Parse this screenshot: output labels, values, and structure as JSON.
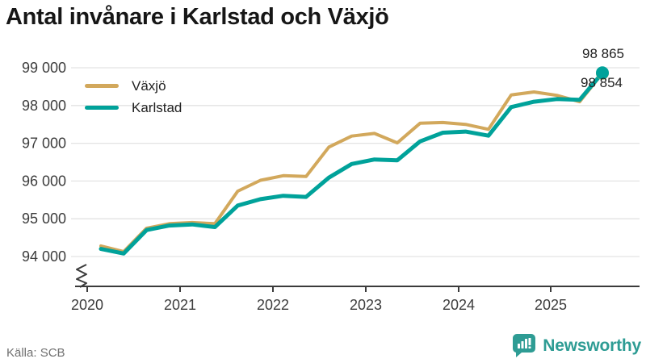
{
  "title": "Antal invånare i Karlstad och Växjö",
  "source": "Källa: SCB",
  "branding": {
    "name": "Newsworthy",
    "icon": "newsworthy-bubble-chart-icon",
    "color": "#2e9c94"
  },
  "colors": {
    "vaxjo_line": "#d2a85c",
    "karlstad_line": "#00a29a",
    "grid": "#e3e3e3",
    "axis": "#3b3b3b",
    "tick_text": "#3d3d3d",
    "title_text": "#161616",
    "end_label_text": "#1f1f1f",
    "source_text": "#707070",
    "background": "#ffffff"
  },
  "end_labels": {
    "karlstad": "98 865",
    "vaxjo": "98 854"
  },
  "chart_data": {
    "type": "line",
    "title": "Antal invånare i Karlstad och Växjö",
    "grid": "horizontal",
    "legend_position": "top-left-inside",
    "axis_break": true,
    "ylim": [
      94000,
      99000
    ],
    "y_ticks": [
      {
        "label": "99 000",
        "value": 99000
      },
      {
        "label": "98 000",
        "value": 98000
      },
      {
        "label": "97 000",
        "value": 97000
      },
      {
        "label": "96 000",
        "value": 96000
      },
      {
        "label": "95 000",
        "value": 95000
      },
      {
        "label": "94 000",
        "value": 94000
      }
    ],
    "x_ticks": [
      "2020",
      "2021",
      "2022",
      "2023",
      "2024",
      "2025"
    ],
    "categories": [
      "2020-Q1",
      "2020-Q2",
      "2020-Q3",
      "2020-Q4",
      "2021-Q1",
      "2021-Q2",
      "2021-Q3",
      "2021-Q4",
      "2022-Q1",
      "2022-Q2",
      "2022-Q3",
      "2022-Q4",
      "2023-Q1",
      "2023-Q2",
      "2023-Q3",
      "2023-Q4",
      "2024-Q1",
      "2024-Q2",
      "2024-Q3",
      "2024-Q4",
      "2025-Q1",
      "2025-Q2",
      "2025-Q3"
    ],
    "series": [
      {
        "name": "Växjö",
        "color": "#d2a85c",
        "end_dot": true,
        "final_value_label": "98 854",
        "values": [
          94280,
          94130,
          94750,
          94870,
          94900,
          94870,
          95730,
          96020,
          96140,
          96120,
          96900,
          97190,
          97260,
          97010,
          97530,
          97550,
          97500,
          97370,
          98280,
          98360,
          98270,
          98100,
          98854
        ]
      },
      {
        "name": "Karlstad",
        "color": "#00a29a",
        "end_dot": true,
        "final_value_label": "98 865",
        "values": [
          94200,
          94080,
          94700,
          94820,
          94850,
          94780,
          95350,
          95520,
          95610,
          95580,
          96090,
          96450,
          96570,
          96550,
          97050,
          97280,
          97310,
          97200,
          97960,
          98100,
          98170,
          98150,
          98865
        ]
      }
    ]
  }
}
